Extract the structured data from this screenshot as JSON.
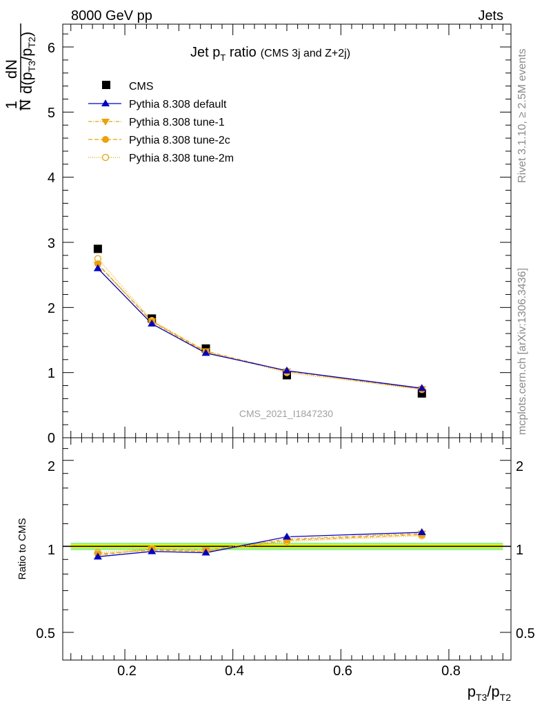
{
  "header": {
    "energy_label": "8000 GeV pp",
    "process_label": "Jets"
  },
  "side_labels": {
    "rivet": "Rivet 3.1.10, ≥ 2.5M events",
    "mcplots": "mcplots.cern.ch [arXiv:1306.3436]"
  },
  "colors": {
    "cms": "#000000",
    "default": "#0000cc",
    "tune": "#f0a000",
    "band_inner": "#f7f700",
    "band_outer": "#8ff48f"
  },
  "chart_data": [
    {
      "type": "scatter",
      "title_main": "Jet p",
      "title_sub": "T",
      "title_rest": " ratio",
      "title_extra": "(CMS 3j and Z+2j)",
      "watermark": "CMS_2021_I1847230",
      "ylabel_num": "1",
      "ylabel_den": "N",
      "ylabel_dn": "dN",
      "ylabel_dd": "d(p",
      "ylabel_s1": "T3",
      "ylabel_mid": "/p",
      "ylabel_s2": "T2",
      "ylabel_close": ")",
      "xlim": [
        0.085,
        0.915
      ],
      "ylim": [
        0,
        6.35
      ],
      "yticks": [
        "1",
        "2",
        "3",
        "4",
        "5",
        "6"
      ],
      "ytick_zero": "0",
      "x": [
        0.15,
        0.25,
        0.35,
        0.5,
        0.75
      ],
      "legend_position": "top-left",
      "series": [
        {
          "name": "CMS",
          "values": [
            2.9,
            1.83,
            1.37,
            0.96,
            0.68
          ],
          "marker": "square"
        },
        {
          "name": "Pythia 8.308 default",
          "values": [
            2.6,
            1.75,
            1.3,
            1.03,
            0.76
          ],
          "marker": "triangle-up"
        },
        {
          "name": "Pythia 8.308 tune-1",
          "values": [
            2.66,
            1.79,
            1.33,
            1.02,
            0.75
          ],
          "marker": "triangle-down"
        },
        {
          "name": "Pythia 8.308 tune-2c",
          "values": [
            2.67,
            1.78,
            1.31,
            1.02,
            0.75
          ],
          "marker": "circle"
        },
        {
          "name": "Pythia 8.308 tune-2m",
          "values": [
            2.75,
            1.8,
            1.32,
            1.0,
            0.74
          ],
          "marker": "circle-open"
        }
      ]
    },
    {
      "type": "scatter",
      "ylabel": "Ratio to CMS",
      "xlabel_main": "p",
      "xlabel_s1": "T3",
      "xlabel_mid": "/p",
      "xlabel_s2": "T2",
      "xticks": [
        "0.2",
        "0.4",
        "0.6",
        "0.8"
      ],
      "xtick_values": [
        0.2,
        0.4,
        0.6,
        0.8
      ],
      "yticks": [
        "0.5",
        "1",
        "2"
      ],
      "ytick_values": [
        0.5,
        1,
        2
      ],
      "ylim": [
        0.4,
        2.4
      ],
      "log_y": true,
      "x": [
        0.15,
        0.25,
        0.35,
        0.5,
        0.75
      ],
      "series": [
        {
          "name": "Pythia 8.308 default",
          "values": [
            0.92,
            0.96,
            0.95,
            1.08,
            1.12
          ]
        },
        {
          "name": "Pythia 8.308 tune-1",
          "values": [
            0.93,
            0.98,
            0.97,
            1.06,
            1.11
          ]
        },
        {
          "name": "Pythia 8.308 tune-2c",
          "values": [
            0.94,
            0.97,
            0.96,
            1.05,
            1.1
          ]
        },
        {
          "name": "Pythia 8.308 tune-2m",
          "values": [
            0.95,
            0.98,
            0.96,
            1.04,
            1.09
          ]
        }
      ]
    }
  ]
}
